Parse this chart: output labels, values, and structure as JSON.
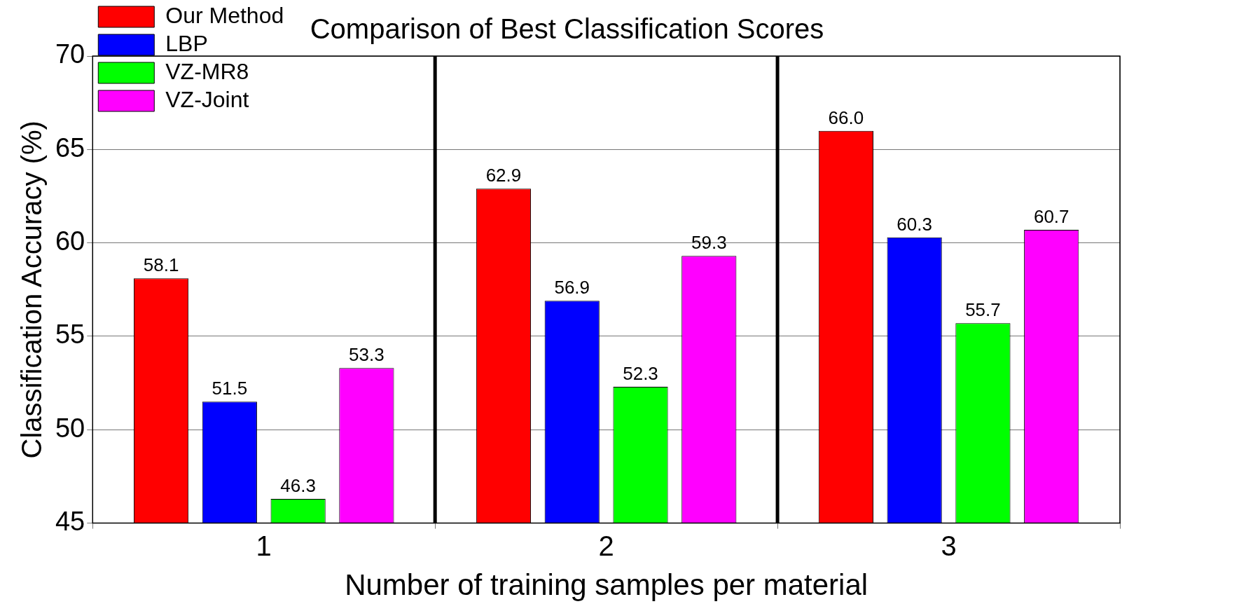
{
  "chart_data": {
    "type": "bar",
    "title": "Comparison of Best Classification Scores",
    "xlabel": "Number of training samples per material",
    "ylabel": "Classification Accuracy (%)",
    "x": [
      1,
      2,
      3
    ],
    "xlim": [
      0.5,
      3.5
    ],
    "xticks": [
      1,
      2,
      3
    ],
    "ylim": [
      45,
      70
    ],
    "yticks": [
      45,
      50,
      55,
      60,
      65,
      70
    ],
    "series": [
      {
        "name": "Our Method",
        "color": "#ff0000",
        "values": [
          58.1,
          62.9,
          66.0
        ]
      },
      {
        "name": "LBP",
        "color": "#0000ff",
        "values": [
          51.5,
          56.9,
          60.3
        ]
      },
      {
        "name": "VZ-MR8",
        "color": "#00ff00",
        "values": [
          46.3,
          52.3,
          55.7
        ]
      },
      {
        "name": "VZ-Joint",
        "color": "#ff00ff",
        "values": [
          53.3,
          59.3,
          60.7
        ]
      }
    ],
    "value_labels": [
      [
        "58.1",
        "62.9",
        "66.0"
      ],
      [
        "51.5",
        "56.9",
        "60.3"
      ],
      [
        "46.3",
        "52.3",
        "55.7"
      ],
      [
        "53.3",
        "59.3",
        "60.7"
      ]
    ],
    "ref_lines": [
      {
        "axis": "x",
        "value": 1.5,
        "color": "#000000"
      },
      {
        "axis": "x",
        "value": 2.5,
        "color": "#000000"
      }
    ],
    "grid": true,
    "legend": "top left"
  }
}
